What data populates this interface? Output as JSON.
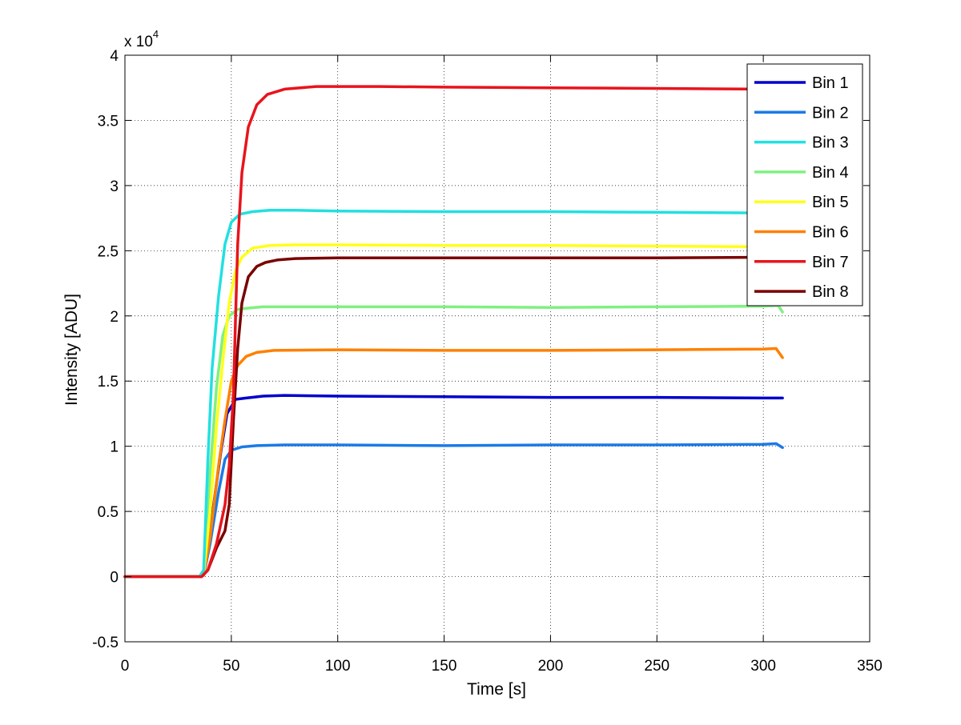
{
  "chart_data": {
    "type": "line",
    "title": "",
    "xlabel": "Time [s]",
    "ylabel": "Intensity [ADU]",
    "xlim": [
      0,
      350
    ],
    "ylim": [
      -0.5,
      4
    ],
    "y_multiplier_label": "x 10",
    "y_multiplier_exponent": "4",
    "xticks": [
      0,
      50,
      100,
      150,
      200,
      250,
      300,
      350
    ],
    "xtick_labels": [
      "0",
      "50",
      "100",
      "150",
      "200",
      "250",
      "300",
      "350"
    ],
    "yticks": [
      -0.5,
      0,
      0.5,
      1,
      1.5,
      2,
      2.5,
      3,
      3.5,
      4
    ],
    "ytick_labels": [
      "-0.5",
      "0",
      "0.5",
      "1",
      "1.5",
      "2",
      "2.5",
      "3",
      "3.5",
      "4"
    ],
    "grid": true,
    "legend_position": "top-right",
    "series": [
      {
        "name": "Bin 1",
        "color": "#0000cc",
        "x": [
          0,
          35,
          37,
          40,
          45,
          48,
          52,
          57,
          65,
          75,
          100,
          150,
          200,
          250,
          300,
          309
        ],
        "y": [
          0,
          0,
          0.02,
          0.35,
          0.95,
          1.25,
          1.36,
          1.37,
          1.385,
          1.39,
          1.385,
          1.38,
          1.375,
          1.375,
          1.37,
          1.37
        ]
      },
      {
        "name": "Bin 2",
        "color": "#1c7ae6",
        "x": [
          0,
          35,
          37,
          40,
          44,
          47,
          50,
          55,
          62,
          75,
          100,
          150,
          200,
          250,
          300,
          306,
          309
        ],
        "y": [
          0,
          0,
          0.01,
          0.25,
          0.65,
          0.9,
          0.97,
          0.995,
          1.005,
          1.01,
          1.01,
          1.005,
          1.01,
          1.01,
          1.015,
          1.02,
          0.99
        ]
      },
      {
        "name": "Bin 3",
        "color": "#22e0e0",
        "x": [
          0,
          35,
          37,
          39,
          41,
          44,
          47,
          50,
          54,
          60,
          68,
          80,
          100,
          150,
          200,
          250,
          300
        ],
        "y": [
          0,
          0,
          0.05,
          0.9,
          1.6,
          2.15,
          2.55,
          2.72,
          2.78,
          2.8,
          2.81,
          2.81,
          2.805,
          2.8,
          2.8,
          2.795,
          2.79
        ]
      },
      {
        "name": "Bin 4",
        "color": "#80f080",
        "x": [
          0,
          35,
          37,
          40,
          43,
          46,
          49,
          53,
          58,
          65,
          80,
          100,
          150,
          200,
          250,
          300,
          307,
          309
        ],
        "y": [
          0,
          0,
          0.02,
          0.8,
          1.45,
          1.85,
          2.0,
          2.05,
          2.06,
          2.07,
          2.07,
          2.07,
          2.07,
          2.065,
          2.07,
          2.075,
          2.08,
          2.03
        ]
      },
      {
        "name": "Bin 5",
        "color": "#ffff1a",
        "x": [
          0,
          35,
          37,
          40,
          43,
          46,
          49,
          52,
          55,
          60,
          68,
          80,
          100,
          150,
          200,
          250,
          300
        ],
        "y": [
          0,
          0,
          0.02,
          0.5,
          1.15,
          1.65,
          2.1,
          2.35,
          2.45,
          2.52,
          2.54,
          2.545,
          2.545,
          2.54,
          2.54,
          2.535,
          2.53
        ]
      },
      {
        "name": "Bin 6",
        "color": "#ff8000",
        "x": [
          0,
          35,
          37,
          40,
          44,
          47,
          50,
          53,
          57,
          62,
          70,
          100,
          150,
          200,
          250,
          300,
          306,
          309
        ],
        "y": [
          0,
          0,
          0.01,
          0.3,
          0.85,
          1.2,
          1.5,
          1.62,
          1.69,
          1.72,
          1.735,
          1.74,
          1.735,
          1.735,
          1.74,
          1.745,
          1.75,
          1.68
        ]
      },
      {
        "name": "Bin 7",
        "color": "#e8141c",
        "x": [
          0,
          36,
          39,
          43,
          47,
          49,
          51,
          52,
          53,
          55,
          58,
          62,
          67,
          75,
          90,
          120,
          150,
          200,
          250,
          300
        ],
        "y": [
          0,
          0,
          0.05,
          0.25,
          0.55,
          0.85,
          1.4,
          2.0,
          2.55,
          3.1,
          3.45,
          3.62,
          3.7,
          3.74,
          3.76,
          3.76,
          3.755,
          3.75,
          3.745,
          3.74
        ]
      },
      {
        "name": "Bin 8",
        "color": "#7a0000",
        "x": [
          0,
          36,
          39,
          43,
          47,
          49,
          51,
          53,
          55,
          58,
          62,
          66,
          72,
          80,
          100,
          150,
          200,
          250,
          300
        ],
        "y": [
          0,
          0,
          0.05,
          0.22,
          0.35,
          0.55,
          1.2,
          1.75,
          2.1,
          2.3,
          2.38,
          2.41,
          2.43,
          2.44,
          2.445,
          2.445,
          2.445,
          2.445,
          2.45
        ]
      }
    ]
  }
}
